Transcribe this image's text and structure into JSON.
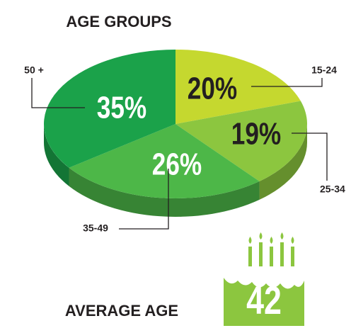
{
  "chart_data": {
    "type": "pie",
    "title": "AGE GROUPS",
    "categories": [
      "15-24",
      "25-34",
      "35-49",
      "50 +"
    ],
    "values": [
      20,
      19,
      26,
      35
    ],
    "value_labels": [
      "20%",
      "19%",
      "26%",
      "35%"
    ],
    "colors": [
      "#c5d82f",
      "#8cc63f",
      "#4db748",
      "#1ba24a"
    ],
    "value_label_colors": [
      "#231f20",
      "#231f20",
      "#ffffff",
      "#ffffff"
    ]
  },
  "average_age": {
    "label": "AVERAGE AGE",
    "value": 42
  }
}
